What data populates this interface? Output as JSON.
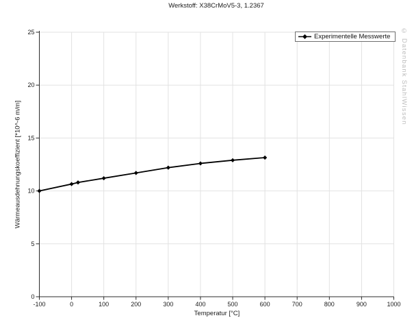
{
  "watermark": "© Datenbank StahlWissen",
  "colors": {
    "line": "#000000",
    "grid": "#e2e2e2",
    "axis": "#2a2a2a",
    "tick_label": "#1a1a1a",
    "watermark": "#bcbcbc",
    "legend_border": "#6e6e6e"
  },
  "chart_data": {
    "type": "line",
    "title": "Werkstoff: X38CrMoV5-3, 1.2367",
    "xlabel": "Temperatur [°C]",
    "ylabel": "Wärmeausdehnungskoeffizient [*10^-6 m/m]",
    "xlim": [
      -100,
      1000
    ],
    "ylim": [
      0,
      25
    ],
    "x_ticks": [
      -100,
      0,
      100,
      200,
      300,
      400,
      500,
      600,
      700,
      800,
      900,
      1000
    ],
    "y_ticks": [
      0,
      5,
      10,
      15,
      20,
      25
    ],
    "grid": true,
    "legend_position": "top-right",
    "series": [
      {
        "name": "Experimentelle Messwerte",
        "marker": "diamond",
        "color": "#000000",
        "x": [
          -100,
          0,
          20,
          100,
          200,
          300,
          400,
          500,
          600
        ],
        "y": [
          10.0,
          10.65,
          10.8,
          11.2,
          11.7,
          12.2,
          12.6,
          12.9,
          13.15
        ]
      }
    ]
  }
}
